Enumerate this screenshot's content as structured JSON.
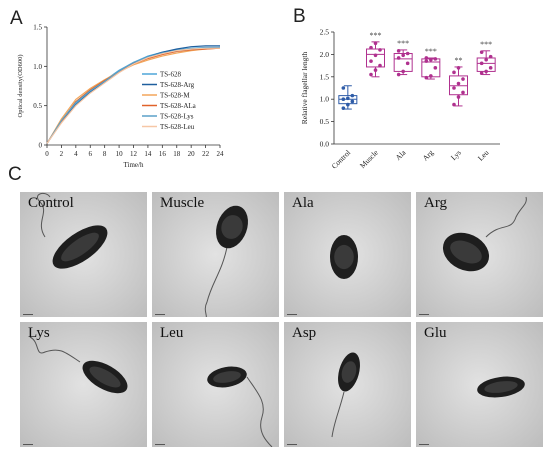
{
  "panels": {
    "a": "A",
    "b": "B",
    "c": "C"
  },
  "chart_data": [
    {
      "type": "line",
      "xlabel": "Time/h",
      "ylabel": "Optical density(OD600)",
      "xlim": [
        0,
        24
      ],
      "ylim": [
        0,
        1.5
      ],
      "x_ticks": [
        0,
        2,
        4,
        6,
        8,
        10,
        12,
        14,
        16,
        18,
        20,
        22,
        24
      ],
      "y_ticks": [
        "0",
        "0.5",
        "1.0",
        "1.5"
      ],
      "grid": false,
      "legend_position": "right",
      "x": [
        0,
        2,
        4,
        6,
        8,
        10,
        12,
        14,
        16,
        18,
        20,
        22,
        24
      ],
      "series": [
        {
          "name": "TS-628",
          "color": "#4da6d9",
          "values": [
            0.02,
            0.3,
            0.52,
            0.68,
            0.82,
            0.95,
            1.05,
            1.13,
            1.18,
            1.21,
            1.23,
            1.24,
            1.24
          ]
        },
        {
          "name": "TS-628-Arg",
          "color": "#1f5f9e",
          "values": [
            0.02,
            0.29,
            0.51,
            0.67,
            0.8,
            0.93,
            1.04,
            1.12,
            1.18,
            1.22,
            1.25,
            1.26,
            1.26
          ]
        },
        {
          "name": "TS-628-M",
          "color": "#f2a65a",
          "values": [
            0.02,
            0.33,
            0.58,
            0.72,
            0.83,
            0.93,
            1.02,
            1.08,
            1.13,
            1.17,
            1.2,
            1.22,
            1.23
          ]
        },
        {
          "name": "TS-628-ALa",
          "color": "#e0622a",
          "values": [
            0.02,
            0.3,
            0.55,
            0.7,
            0.82,
            0.93,
            1.03,
            1.1,
            1.15,
            1.19,
            1.21,
            1.22,
            1.23
          ]
        },
        {
          "name": "TS-628-Lys",
          "color": "#5aa0c8",
          "values": [
            0.02,
            0.31,
            0.54,
            0.69,
            0.81,
            0.94,
            1.05,
            1.12,
            1.17,
            1.2,
            1.22,
            1.23,
            1.24
          ]
        },
        {
          "name": "TS-628-Leu",
          "color": "#f6c7a6",
          "values": [
            0.02,
            0.28,
            0.5,
            0.66,
            0.79,
            0.92,
            1.03,
            1.11,
            1.16,
            1.2,
            1.22,
            1.23,
            1.23
          ]
        }
      ]
    },
    {
      "type": "box",
      "ylabel": "Relative flagellar length",
      "ylim": [
        0.0,
        2.5
      ],
      "y_ticks": [
        "0.0",
        "0.5",
        "1.0",
        "1.5",
        "2.0",
        "2.5"
      ],
      "categories": [
        "Control",
        "Muscle",
        "Ala",
        "Arg",
        "Lys",
        "Leu"
      ],
      "colors": [
        "#2e5ca8",
        "#b0318f",
        "#b0318f",
        "#b0318f",
        "#b0318f",
        "#b0318f"
      ],
      "significance": [
        "",
        "***",
        "***",
        "***",
        "**",
        "***"
      ],
      "boxes": [
        {
          "min": 0.78,
          "q1": 0.9,
          "median": 1.0,
          "q3": 1.08,
          "max": 1.3
        },
        {
          "min": 1.5,
          "q1": 1.72,
          "median": 2.0,
          "q3": 2.12,
          "max": 2.28
        },
        {
          "min": 1.55,
          "q1": 1.62,
          "median": 1.9,
          "q3": 2.02,
          "max": 2.1
        },
        {
          "min": 1.45,
          "q1": 1.5,
          "median": 1.83,
          "q3": 1.9,
          "max": 1.92
        },
        {
          "min": 0.85,
          "q1": 1.1,
          "median": 1.3,
          "q3": 1.52,
          "max": 1.72
        },
        {
          "min": 1.55,
          "q1": 1.62,
          "median": 1.8,
          "q3": 1.92,
          "max": 2.08
        }
      ],
      "points": [
        [
          0.8,
          0.88,
          0.95,
          1.0,
          1.02,
          1.08,
          1.25
        ],
        [
          1.55,
          1.65,
          1.75,
          1.85,
          1.98,
          2.1,
          2.15,
          2.25
        ],
        [
          1.55,
          1.62,
          1.8,
          1.92,
          1.98,
          2.02,
          2.08
        ],
        [
          1.48,
          1.52,
          1.7,
          1.85,
          1.88,
          1.9,
          1.92
        ],
        [
          0.88,
          1.05,
          1.15,
          1.25,
          1.35,
          1.45,
          1.6,
          1.7
        ],
        [
          1.58,
          1.62,
          1.7,
          1.8,
          1.88,
          1.95,
          2.05
        ]
      ]
    }
  ],
  "tem": [
    {
      "label": "Control"
    },
    {
      "label": "Muscle"
    },
    {
      "label": "Ala"
    },
    {
      "label": "Arg"
    },
    {
      "label": "Lys"
    },
    {
      "label": "Leu"
    },
    {
      "label": "Asp"
    },
    {
      "label": "Glu"
    }
  ]
}
